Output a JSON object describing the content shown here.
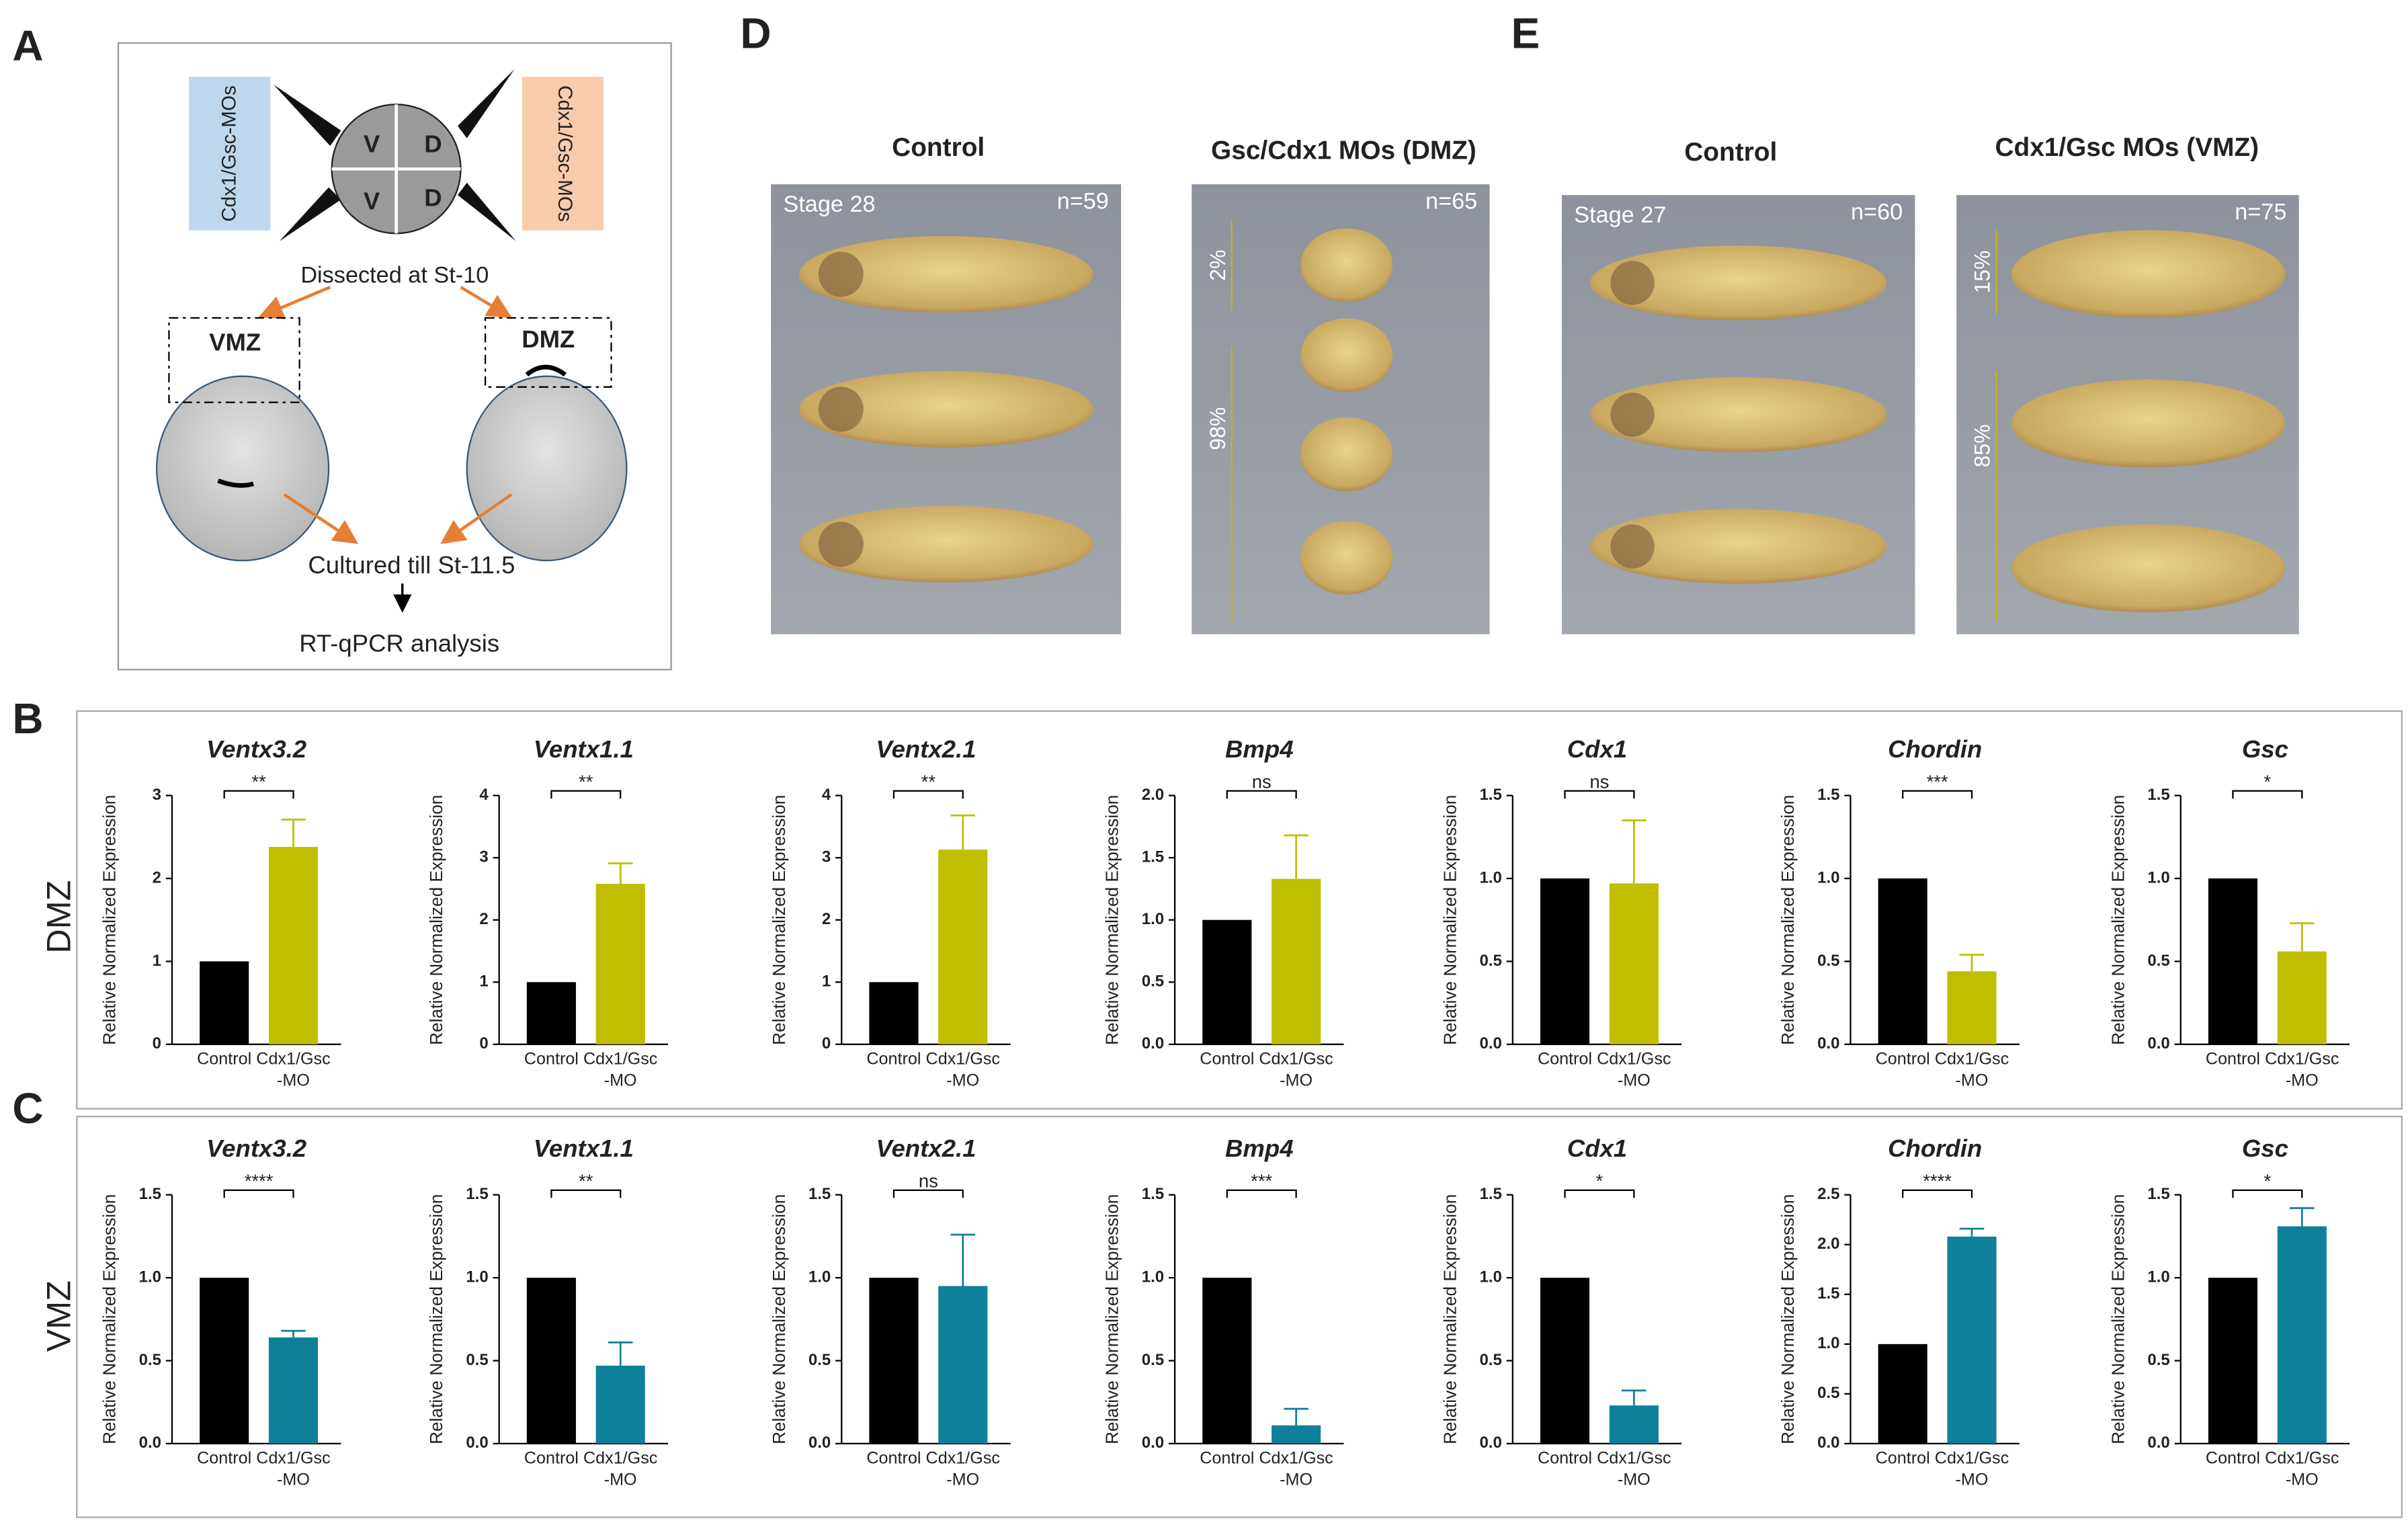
{
  "panel_labels": [
    "A",
    "B",
    "C",
    "D",
    "E"
  ],
  "row_labels": [
    "DMZ",
    "VMZ"
  ],
  "diagram": {
    "left_box": "Cdx1/Gsc-MOs",
    "right_box": "Cdx1/Gsc-MOs",
    "quadrants": [
      "V",
      "D",
      "V",
      "D"
    ],
    "dissected": "Dissected at St-10",
    "vmz": "VMZ",
    "dmz": "DMZ",
    "cultured": "Cultured till St-11.5",
    "analysis": "RT-qPCR analysis"
  },
  "photos": [
    {
      "title": "Control",
      "stage": "Stage 28",
      "n": "n=59",
      "percent_labels": []
    },
    {
      "title": "Gsc/Cdx1 MOs  (DMZ)",
      "stage": null,
      "n": "n=65",
      "percent_labels": [
        "2%",
        "98%"
      ]
    },
    {
      "title": "Control",
      "stage": "Stage 27",
      "n": "n=60",
      "percent_labels": []
    },
    {
      "title": "Cdx1/Gsc MOs (VMZ)",
      "stage": null,
      "n": "n=75",
      "percent_labels": [
        "15%",
        "85%"
      ]
    }
  ],
  "chart_data": [
    {
      "type": "bar",
      "title": "Ventx3.2",
      "y_label": "Relative Normalized Expression",
      "categories": [
        "Control",
        "Cdx1/Gsc -MO"
      ],
      "values": [
        1,
        2.38
      ],
      "errors": [
        null,
        0.33
      ],
      "colors": [
        "#000000",
        "#bfbf00"
      ],
      "significance": "**",
      "ylim": [
        0,
        3
      ],
      "yticks": [
        0,
        1,
        2,
        3
      ]
    },
    {
      "type": "bar",
      "title": "Ventx1.1",
      "y_label": "Relative Normalized Expression",
      "categories": [
        "Control",
        "Cdx1/Gsc -MO"
      ],
      "values": [
        1,
        2.58
      ],
      "errors": [
        null,
        0.33
      ],
      "colors": [
        "#000000",
        "#bfbf00"
      ],
      "significance": "**",
      "ylim": [
        0,
        4
      ],
      "yticks": [
        0,
        1,
        2,
        3,
        4
      ]
    },
    {
      "type": "bar",
      "title": "Ventx2.1",
      "y_label": "Relative Normalized Expression",
      "categories": [
        "Control",
        "Cdx1/Gsc -MO"
      ],
      "values": [
        1,
        3.13
      ],
      "errors": [
        null,
        0.55
      ],
      "colors": [
        "#000000",
        "#bfbf00"
      ],
      "significance": "**",
      "ylim": [
        0,
        4
      ],
      "yticks": [
        0,
        1,
        2,
        3,
        4
      ]
    },
    {
      "type": "bar",
      "title": "Bmp4",
      "y_label": "Relative Normalized Expression",
      "categories": [
        "Control",
        "Cdx1/Gsc -MO"
      ],
      "values": [
        1,
        1.33
      ],
      "errors": [
        null,
        0.35
      ],
      "colors": [
        "#000000",
        "#bfbf00"
      ],
      "significance": "ns",
      "ylim": [
        0,
        2
      ],
      "yticks": [
        {
          "value": 0,
          "label": "0.0"
        },
        {
          "value": 0.5,
          "label": "0.5"
        },
        {
          "value": 1,
          "label": "1.0"
        },
        {
          "value": 1.5,
          "label": "1.5"
        },
        {
          "value": 2,
          "label": "2.0"
        }
      ]
    },
    {
      "type": "bar",
      "title": "Cdx1",
      "y_label": "Relative Normalized Expression",
      "categories": [
        "Control",
        "Cdx1/Gsc -MO"
      ],
      "values": [
        1,
        0.97
      ],
      "errors": [
        null,
        0.38
      ],
      "colors": [
        "#000000",
        "#bfbf00"
      ],
      "significance": "ns",
      "ylim": [
        0,
        1.5
      ],
      "yticks": [
        {
          "value": 0,
          "label": "0.0"
        },
        0.5,
        {
          "value": 1,
          "label": "1.0"
        },
        1.5
      ]
    },
    {
      "type": "bar",
      "title": "Chordin",
      "y_label": "Relative Normalized Expression",
      "categories": [
        "Control",
        "Cdx1/Gsc -MO"
      ],
      "values": [
        1,
        0.44
      ],
      "errors": [
        null,
        0.1
      ],
      "colors": [
        "#000000",
        "#bfbf00"
      ],
      "significance": "***",
      "ylim": [
        0,
        1.5
      ],
      "yticks": [
        {
          "value": 0,
          "label": "0.0"
        },
        0.5,
        {
          "value": 1,
          "label": "1.0"
        },
        1.5
      ]
    },
    {
      "type": "bar",
      "title": "Gsc",
      "y_label": "Relative Normalized Expression",
      "categories": [
        "Control",
        "Cdx1/Gsc -MO"
      ],
      "values": [
        1,
        0.56
      ],
      "errors": [
        null,
        0.17
      ],
      "colors": [
        "#000000",
        "#bfbf00"
      ],
      "significance": "*",
      "ylim": [
        0,
        1.5
      ],
      "yticks": [
        {
          "value": 0,
          "label": "0.0"
        },
        0.5,
        {
          "value": 1,
          "label": "1.0"
        },
        1.5
      ]
    },
    {
      "type": "bar",
      "title": "Ventx3.2",
      "y_label": "Relative Normalized Expression",
      "categories": [
        "Control",
        "Cdx1/Gsc -MO"
      ],
      "values": [
        1,
        0.64
      ],
      "errors": [
        null,
        0.04
      ],
      "colors": [
        "#000000",
        "#0e8099"
      ],
      "significance": "****",
      "ylim": [
        0,
        1.5
      ],
      "yticks": [
        {
          "value": 0,
          "label": "0.0"
        },
        0.5,
        {
          "value": 1,
          "label": "1.0"
        },
        1.5
      ]
    },
    {
      "type": "bar",
      "title": "Ventx1.1",
      "y_label": "Relative Normalized Expression",
      "categories": [
        "Control",
        "Cdx1/Gsc -MO"
      ],
      "values": [
        1,
        0.47
      ],
      "errors": [
        null,
        0.14
      ],
      "colors": [
        "#000000",
        "#0e8099"
      ],
      "significance": "**",
      "ylim": [
        0,
        1.5
      ],
      "yticks": [
        {
          "value": 0,
          "label": "0.0"
        },
        0.5,
        {
          "value": 1,
          "label": "1.0"
        },
        1.5
      ]
    },
    {
      "type": "bar",
      "title": "Ventx2.1",
      "y_label": "Relative Normalized Expression",
      "categories": [
        "Control",
        "Cdx1/Gsc -MO"
      ],
      "values": [
        1,
        0.95
      ],
      "errors": [
        null,
        0.31
      ],
      "colors": [
        "#000000",
        "#0e8099"
      ],
      "significance": "ns",
      "ylim": [
        0,
        1.5
      ],
      "yticks": [
        {
          "value": 0,
          "label": "0.0"
        },
        0.5,
        {
          "value": 1,
          "label": "1.0"
        },
        1.5
      ]
    },
    {
      "type": "bar",
      "title": "Bmp4",
      "y_label": "Relative Normalized Expression",
      "categories": [
        "Control",
        "Cdx1/Gsc -MO"
      ],
      "values": [
        1,
        0.11
      ],
      "errors": [
        null,
        0.1
      ],
      "colors": [
        "#000000",
        "#0e8099"
      ],
      "significance": "***",
      "ylim": [
        0,
        1.5
      ],
      "yticks": [
        {
          "value": 0,
          "label": "0.0"
        },
        0.5,
        {
          "value": 1,
          "label": "1.0"
        },
        1.5
      ]
    },
    {
      "type": "bar",
      "title": "Cdx1",
      "y_label": "Relative Normalized Expression",
      "categories": [
        "Control",
        "Cdx1/Gsc -MO"
      ],
      "values": [
        1,
        0.23
      ],
      "errors": [
        null,
        0.09
      ],
      "colors": [
        "#000000",
        "#0e8099"
      ],
      "significance": "*",
      "ylim": [
        0,
        1.5
      ],
      "yticks": [
        {
          "value": 0,
          "label": "0.0"
        },
        0.5,
        {
          "value": 1,
          "label": "1.0"
        },
        1.5
      ]
    },
    {
      "type": "bar",
      "title": "Chordin",
      "y_label": "Relative Normalized Expression",
      "categories": [
        "Control",
        "Cdx1/Gsc -MO"
      ],
      "values": [
        1,
        2.08
      ],
      "errors": [
        null,
        0.08
      ],
      "colors": [
        "#000000",
        "#0e8099"
      ],
      "significance": "****",
      "ylim": [
        0,
        2.5
      ],
      "yticks": [
        {
          "value": 0,
          "label": "0.0"
        },
        0.5,
        {
          "value": 1,
          "label": "1.0"
        },
        1.5,
        {
          "value": 2,
          "label": "2.0"
        },
        2.5
      ]
    },
    {
      "type": "bar",
      "title": "Gsc",
      "y_label": "Relative Normalized Expression",
      "categories": [
        "Control",
        "Cdx1/Gsc -MO"
      ],
      "values": [
        1,
        1.31
      ],
      "errors": [
        null,
        0.11
      ],
      "colors": [
        "#000000",
        "#0e8099"
      ],
      "significance": "*",
      "ylim": [
        0,
        1.5
      ],
      "yticks": [
        {
          "value": 0,
          "label": "0.0"
        },
        0.5,
        {
          "value": 1,
          "label": "1.0"
        },
        1.5
      ]
    }
  ]
}
